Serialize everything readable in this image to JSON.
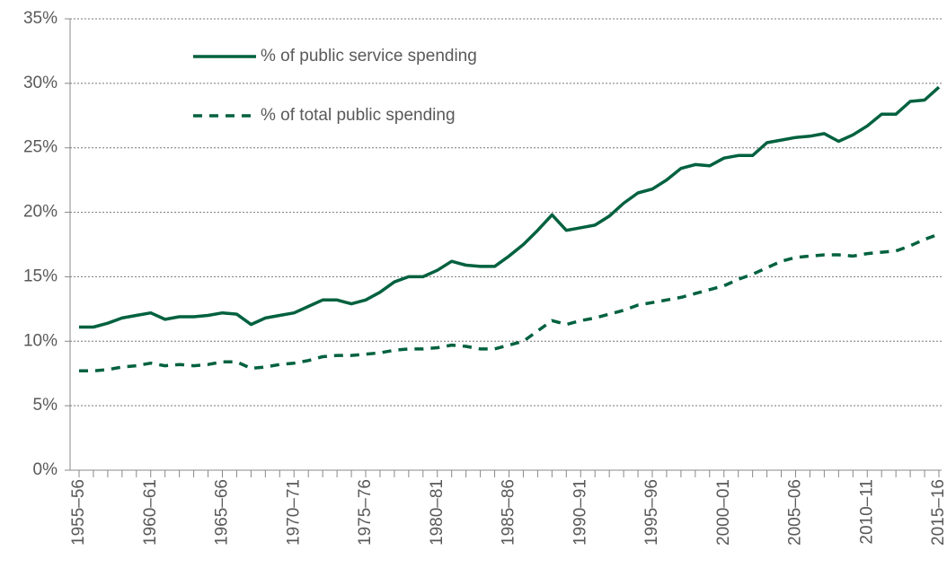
{
  "chart_data": {
    "type": "line",
    "categories": [
      "1955–56",
      null,
      null,
      null,
      null,
      "1960–61",
      null,
      null,
      null,
      null,
      "1965–66",
      null,
      null,
      null,
      null,
      "1970–71",
      null,
      null,
      null,
      null,
      "1975–76",
      null,
      null,
      null,
      null,
      "1980–81",
      null,
      null,
      null,
      null,
      "1985–86",
      null,
      null,
      null,
      null,
      "1990–91",
      null,
      null,
      null,
      null,
      "1995–96",
      null,
      null,
      null,
      null,
      "2000–01",
      null,
      null,
      null,
      null,
      "2005–06",
      null,
      null,
      null,
      null,
      "2010–11",
      null,
      null,
      null,
      null,
      "2015–16"
    ],
    "series": [
      {
        "name": "% of public service spending",
        "color": "#00613f",
        "line_style": "solid",
        "values": [
          11.1,
          11.1,
          11.4,
          11.8,
          12.0,
          12.2,
          11.7,
          11.9,
          11.9,
          12.0,
          12.2,
          12.1,
          11.3,
          11.8,
          12.0,
          12.2,
          12.7,
          13.2,
          13.2,
          12.9,
          13.2,
          13.8,
          14.6,
          15.0,
          15.0,
          15.5,
          16.2,
          15.9,
          15.8,
          15.8,
          16.6,
          17.5,
          18.6,
          19.8,
          18.6,
          18.8,
          19.0,
          19.7,
          20.7,
          21.5,
          21.8,
          22.5,
          23.4,
          23.7,
          23.6,
          24.2,
          24.4,
          24.4,
          25.4,
          25.6,
          25.8,
          25.9,
          26.1,
          25.5,
          26.0,
          26.7,
          27.6,
          27.6,
          28.6,
          28.7,
          29.7
        ]
      },
      {
        "name": "% of total public spending",
        "color": "#00613f",
        "line_style": "dashed",
        "values": [
          7.7,
          7.7,
          7.8,
          8.0,
          8.1,
          8.3,
          8.1,
          8.2,
          8.1,
          8.2,
          8.4,
          8.4,
          7.9,
          8.0,
          8.2,
          8.3,
          8.5,
          8.8,
          8.9,
          8.9,
          9.0,
          9.1,
          9.3,
          9.4,
          9.4,
          9.5,
          9.7,
          9.6,
          9.4,
          9.4,
          9.7,
          10.0,
          10.8,
          11.6,
          11.3,
          11.6,
          11.8,
          12.1,
          12.4,
          12.8,
          13.0,
          13.2,
          13.4,
          13.7,
          14.0,
          14.3,
          14.8,
          15.2,
          15.7,
          16.2,
          16.5,
          16.6,
          16.7,
          16.7,
          16.6,
          16.8,
          16.9,
          17.0,
          17.4,
          17.9,
          18.3
        ]
      }
    ],
    "ylim": [
      0,
      35
    ],
    "yticks": [
      {
        "value": 0,
        "label": "0%"
      },
      {
        "value": 5,
        "label": "5%"
      },
      {
        "value": 10,
        "label": "10%"
      },
      {
        "value": 15,
        "label": "15%"
      },
      {
        "value": 20,
        "label": "20%"
      },
      {
        "value": 25,
        "label": "25%"
      },
      {
        "value": 30,
        "label": "30%"
      },
      {
        "value": 35,
        "label": "35%"
      }
    ],
    "grid": true,
    "legend": "upper left"
  }
}
